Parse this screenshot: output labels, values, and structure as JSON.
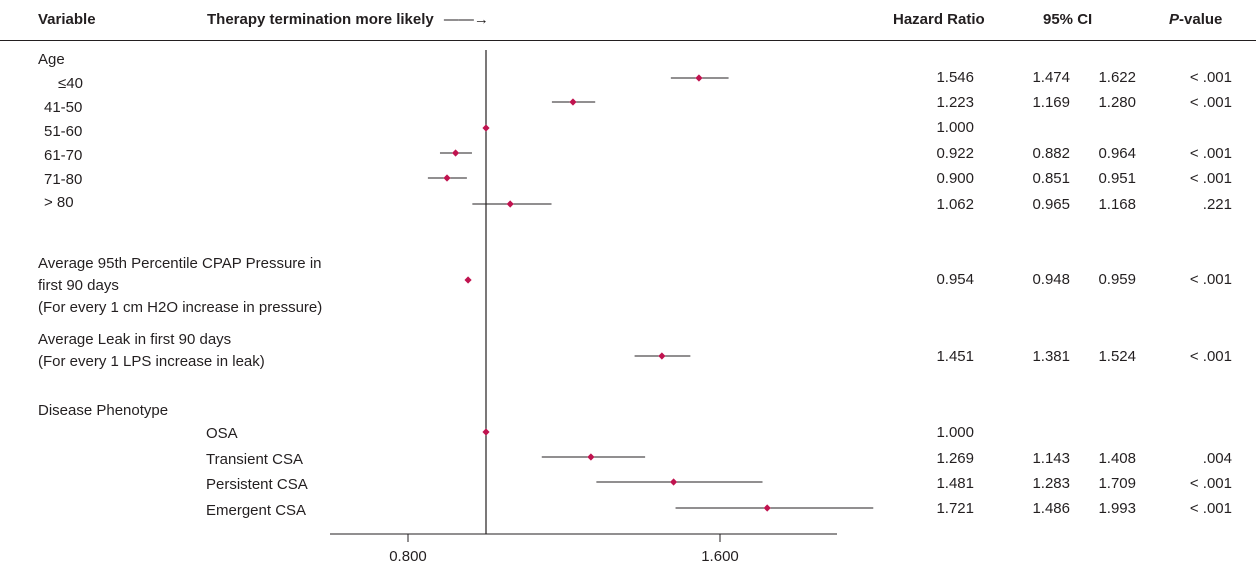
{
  "header": {
    "variable": "Variable",
    "direction": "Therapy termination more likely",
    "arrow": "——→",
    "hazard_ratio": "Hazard Ratio",
    "ci": "95% CI",
    "p_italic": "P",
    "p_rest": "-value"
  },
  "groups": {
    "age": "Age",
    "cpap_line1": "Average 95th Percentile CPAP Pressure in",
    "cpap_line2": "first 90 days",
    "cpap_line3": "(For every 1 cm H2O increase in pressure)",
    "leak_line1": "Average Leak in first 90 days",
    "leak_line2": "(For every 1 LPS increase in leak)",
    "phenotype": "Disease Phenotype"
  },
  "chart_data": {
    "type": "forest",
    "title": "",
    "xlabel": "",
    "reference_line": 1.0,
    "x_ticks": [
      "0.800",
      "1.600"
    ],
    "xlim": [
      0.6,
      1.9
    ],
    "accent_color": "#c0134f",
    "rows": [
      {
        "label": "≤40",
        "hr": "1.546",
        "lo": "1.474",
        "hi": "1.622",
        "p": "< .001",
        "v": [
          1.546,
          1.474,
          1.622
        ]
      },
      {
        "label": "41-50",
        "hr": "1.223",
        "lo": "1.169",
        "hi": "1.280",
        "p": "< .001",
        "v": [
          1.223,
          1.169,
          1.28
        ]
      },
      {
        "label": "51-60",
        "hr": "1.000",
        "lo": "",
        "hi": "",
        "p": "",
        "v": [
          1.0,
          1.0,
          1.0
        ]
      },
      {
        "label": "61-70",
        "hr": "0.922",
        "lo": "0.882",
        "hi": "0.964",
        "p": "< .001",
        "v": [
          0.922,
          0.882,
          0.964
        ]
      },
      {
        "label": "71-80",
        "hr": "0.900",
        "lo": "0.851",
        "hi": "0.951",
        "p": "< .001",
        "v": [
          0.9,
          0.851,
          0.951
        ]
      },
      {
        "label": "> 80",
        "hr": "1.062",
        "lo": "0.965",
        "hi": "1.168",
        "p": ".221",
        "v": [
          1.062,
          0.965,
          1.168
        ]
      },
      {
        "label": "",
        "hr": "0.954",
        "lo": "0.948",
        "hi": "0.959",
        "p": "< .001",
        "v": [
          0.954,
          0.948,
          0.959
        ]
      },
      {
        "label": "",
        "hr": "1.451",
        "lo": "1.381",
        "hi": "1.524",
        "p": "< .001",
        "v": [
          1.451,
          1.381,
          1.524
        ]
      },
      {
        "label": "OSA",
        "hr": "1.000",
        "lo": "",
        "hi": "",
        "p": "",
        "v": [
          1.0,
          1.0,
          1.0
        ]
      },
      {
        "label": "Transient CSA",
        "hr": "1.269",
        "lo": "1.143",
        "hi": "1.408",
        "p": ".004",
        "v": [
          1.269,
          1.143,
          1.408
        ]
      },
      {
        "label": "Persistent CSA",
        "hr": "1.481",
        "lo": "1.283",
        "hi": "1.709",
        "p": "< .001",
        "v": [
          1.481,
          1.283,
          1.709
        ]
      },
      {
        "label": "Emergent CSA",
        "hr": "1.721",
        "lo": "1.486",
        "hi": "1.993",
        "p": "< .001",
        "v": [
          1.721,
          1.486,
          1.993
        ]
      }
    ]
  }
}
